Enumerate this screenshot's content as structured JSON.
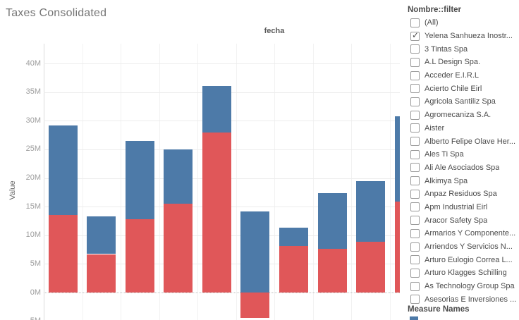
{
  "title": "Taxes Consolidated",
  "chart": {
    "x_axis_title": "fecha",
    "y_axis_title": "Value",
    "y_ticks": [
      {
        "label": "40M",
        "value": 40
      },
      {
        "label": "35M",
        "value": 35
      },
      {
        "label": "30M",
        "value": 30
      },
      {
        "label": "25M",
        "value": 25
      },
      {
        "label": "20M",
        "value": 20
      },
      {
        "label": "15M",
        "value": 15
      },
      {
        "label": "10M",
        "value": 10
      },
      {
        "label": "5M",
        "value": 5
      },
      {
        "label": "0M",
        "value": 0
      },
      {
        "label": "-5M",
        "value": -5
      }
    ]
  },
  "chart_data": {
    "type": "bar",
    "stacked": true,
    "title": "Taxes Consolidated",
    "xlabel": "fecha",
    "ylabel": "Value",
    "units": "millions",
    "ylim": [
      -5000000,
      43000000
    ],
    "grid": true,
    "x_tick_labels_visible": false,
    "bar_count": 10,
    "series": [
      {
        "name": "measure-red",
        "color": "#e05759",
        "values": [
          13.5,
          6.7,
          12.8,
          15.5,
          27.9,
          -4.4,
          8.1,
          7.6,
          8.9,
          15.9
        ]
      },
      {
        "name": "measure-blue",
        "color": "#4d7aa8",
        "values": [
          15.7,
          6.6,
          13.7,
          9.5,
          8.2,
          14.2,
          3.2,
          9.8,
          10.6,
          14.9
        ]
      }
    ],
    "stack_totals": [
      29.2,
      13.3,
      26.5,
      25.0,
      36.1,
      9.8,
      11.3,
      17.4,
      19.5,
      30.8
    ],
    "legend_position": "right-bottom-clipped"
  },
  "filter_panel": {
    "nombre_filter": {
      "title": "Nombre::filter",
      "items": [
        {
          "label": "(All)",
          "checked": false
        },
        {
          "label": "Yelena Sanhueza Inostr...",
          "checked": true
        },
        {
          "label": "3 Tintas Spa",
          "checked": false
        },
        {
          "label": "A.L Design Spa.",
          "checked": false
        },
        {
          "label": "Acceder E.I.R.L",
          "checked": false
        },
        {
          "label": "Acierto Chile Eirl",
          "checked": false
        },
        {
          "label": "Agricola Santiliz Spa",
          "checked": false
        },
        {
          "label": "Agromecaniza S.A.",
          "checked": false
        },
        {
          "label": "Aister",
          "checked": false
        },
        {
          "label": "Alberto Felipe Olave Her...",
          "checked": false
        },
        {
          "label": "Ales Ti Spa",
          "checked": false
        },
        {
          "label": "Ali Ale Asociados Spa",
          "checked": false
        },
        {
          "label": "Alkimya Spa",
          "checked": false
        },
        {
          "label": "Anpaz Residuos Spa",
          "checked": false
        },
        {
          "label": "Apm Industrial Eirl",
          "checked": false
        },
        {
          "label": "Aracor Safety Spa",
          "checked": false
        },
        {
          "label": "Armarios Y Componente...",
          "checked": false
        },
        {
          "label": "Arriendos Y Servicios N...",
          "checked": false
        },
        {
          "label": "Arturo Eulogio Correa L...",
          "checked": false
        },
        {
          "label": "Arturo Klagges Schilling",
          "checked": false
        },
        {
          "label": "As Technology Group Spa",
          "checked": false
        },
        {
          "label": "Asesorias E Inversiones ...",
          "checked": false
        }
      ]
    },
    "measure_names_legend": {
      "title": "Measure Names",
      "swatch_color": "#4d7aa8"
    }
  },
  "colors": {
    "bar_blue": "#4d7aa8",
    "bar_red": "#e05759",
    "gridline": "#ececec",
    "zero_line": "#bfbfbf",
    "axis_line": "#dcdcdc",
    "tick_label_text": "#9e9e9e",
    "title_text": "#757575"
  }
}
